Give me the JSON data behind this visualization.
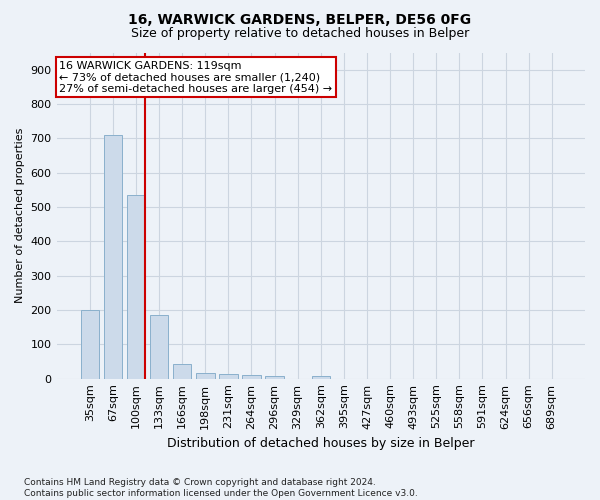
{
  "title1": "16, WARWICK GARDENS, BELPER, DE56 0FG",
  "title2": "Size of property relative to detached houses in Belper",
  "xlabel": "Distribution of detached houses by size in Belper",
  "ylabel": "Number of detached properties",
  "footnote": "Contains HM Land Registry data © Crown copyright and database right 2024.\nContains public sector information licensed under the Open Government Licence v3.0.",
  "bins": [
    "35sqm",
    "67sqm",
    "100sqm",
    "133sqm",
    "166sqm",
    "198sqm",
    "231sqm",
    "264sqm",
    "296sqm",
    "329sqm",
    "362sqm",
    "395sqm",
    "427sqm",
    "460sqm",
    "493sqm",
    "525sqm",
    "558sqm",
    "591sqm",
    "624sqm",
    "656sqm",
    "689sqm"
  ],
  "values": [
    200,
    710,
    535,
    185,
    42,
    17,
    13,
    10,
    7,
    0,
    8,
    0,
    0,
    0,
    0,
    0,
    0,
    0,
    0,
    0,
    0
  ],
  "bar_color": "#ccdaea",
  "bar_edge_color": "#8ab0cc",
  "grid_color": "#ccd5e0",
  "bg_color": "#edf2f8",
  "red_line_x": 2.4,
  "annotation_line1": "16 WARWICK GARDENS: 119sqm",
  "annotation_line2": "← 73% of detached houses are smaller (1,240)",
  "annotation_line3": "27% of semi-detached houses are larger (454) →",
  "annotation_box_color": "#ffffff",
  "annotation_border_color": "#cc0000",
  "ylim": [
    0,
    950
  ],
  "yticks": [
    0,
    100,
    200,
    300,
    400,
    500,
    600,
    700,
    800,
    900
  ],
  "title1_fontsize": 10,
  "title2_fontsize": 9,
  "xlabel_fontsize": 9,
  "ylabel_fontsize": 8,
  "tick_fontsize": 8,
  "annot_fontsize": 8,
  "footnote_fontsize": 6.5
}
